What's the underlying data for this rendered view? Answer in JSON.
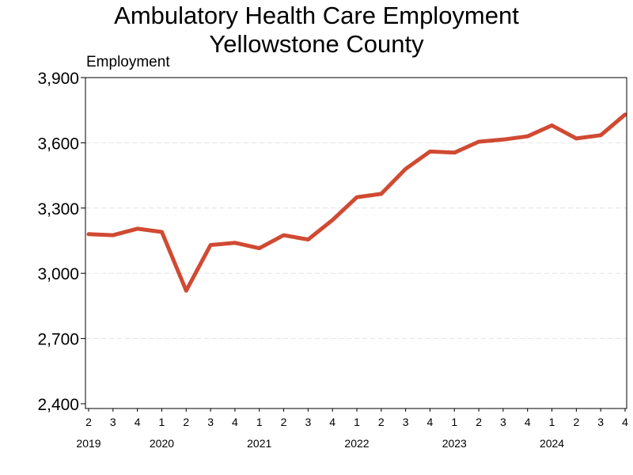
{
  "chart_data": {
    "type": "line",
    "title": [
      "Ambulatory Health Care Employment",
      "Yellowstone County"
    ],
    "ylabel": "Employment",
    "ylim": [
      2400,
      3900
    ],
    "yticks": [
      2400,
      2700,
      3000,
      3300,
      3600,
      3900
    ],
    "ytick_labels": [
      "2,400",
      "2,700",
      "3,000",
      "3,300",
      "3,600",
      "3,900"
    ],
    "x": [
      "2019-Q2",
      "2019-Q3",
      "2019-Q4",
      "2020-Q1",
      "2020-Q2",
      "2020-Q3",
      "2020-Q4",
      "2021-Q1",
      "2021-Q2",
      "2021-Q3",
      "2021-Q4",
      "2022-Q1",
      "2022-Q2",
      "2022-Q3",
      "2022-Q4",
      "2023-Q1",
      "2023-Q2",
      "2023-Q3",
      "2023-Q4",
      "2024-Q1",
      "2024-Q2",
      "2024-Q3",
      "2024-Q4"
    ],
    "quarter_labels": [
      "2",
      "3",
      "4",
      "1",
      "2",
      "3",
      "4",
      "1",
      "2",
      "3",
      "4",
      "1",
      "2",
      "3",
      "4",
      "1",
      "2",
      "3",
      "4",
      "1",
      "2",
      "3",
      "4"
    ],
    "years": [
      {
        "label": "2019",
        "quarter_index": 0
      },
      {
        "label": "2020",
        "quarter_index": 3
      },
      {
        "label": "2021",
        "quarter_index": 7
      },
      {
        "label": "2022",
        "quarter_index": 11
      },
      {
        "label": "2023",
        "quarter_index": 15
      },
      {
        "label": "2024",
        "quarter_index": 19
      }
    ],
    "series": [
      {
        "values": [
          3180,
          3175,
          3205,
          3190,
          2920,
          3130,
          3140,
          3115,
          3175,
          3155,
          3245,
          3350,
          3365,
          3480,
          3560,
          3555,
          3605,
          3615,
          3630,
          3680,
          3620,
          3635,
          3730
        ]
      }
    ],
    "grid": "horizontal-dashed",
    "colors": {
      "line": "#d04a32",
      "grid": "#e4e4e4",
      "axis": "#000000"
    }
  }
}
